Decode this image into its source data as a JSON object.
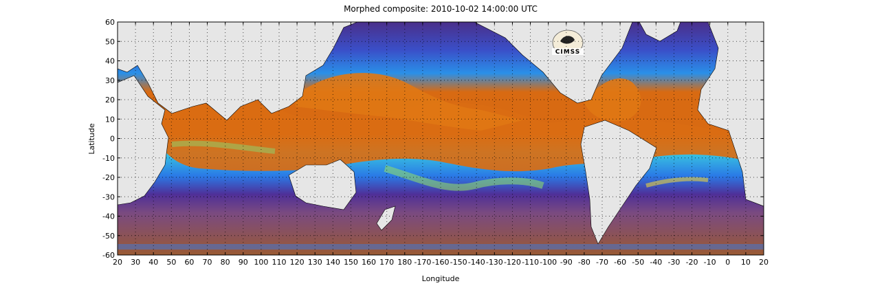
{
  "figure": {
    "title": "Morphed composite: 2010-10-02 14:00:00 UTC",
    "xlabel": "Longitude",
    "ylabel": "Latitude",
    "x_ticks": [
      "20",
      "30",
      "40",
      "50",
      "60",
      "70",
      "80",
      "90",
      "100",
      "110",
      "120",
      "130",
      "140",
      "150",
      "160",
      "170",
      "180",
      "-170",
      "-160",
      "-150",
      "-140",
      "-130",
      "-120",
      "-110",
      "-100",
      "-90",
      "-80",
      "-70",
      "-60",
      "-50",
      "-40",
      "-30",
      "-20",
      "-10",
      "0",
      "10",
      "20"
    ],
    "y_ticks": [
      "60",
      "50",
      "40",
      "30",
      "20",
      "10",
      "0",
      "-10",
      "-20",
      "-30",
      "-40",
      "-50",
      "-60"
    ],
    "logo_text": "CIMSS",
    "grid": "dotted",
    "colors": {
      "land": "#e6e6e6",
      "high_tpw": "#e07010",
      "mid_tpw": "#3cc8e0",
      "low_tpw": "#6a3a9a",
      "very_low_tpw": "#a0603a"
    }
  }
}
